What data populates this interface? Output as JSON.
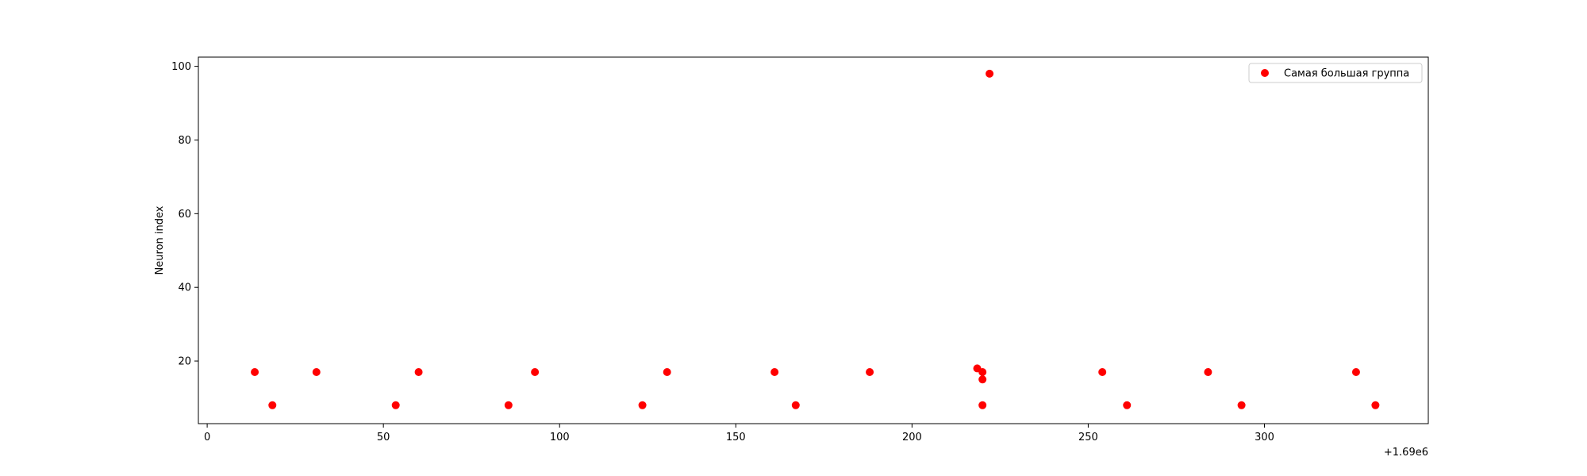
{
  "chart_data": {
    "type": "scatter",
    "title": "",
    "xlabel": "",
    "ylabel": "Neuron index",
    "x_offset_label": "+1.69e6",
    "x_offset": 1690000,
    "xlim": [
      1689997.5,
      1690346.5
    ],
    "ylim": [
      3,
      102.5
    ],
    "x_ticks": [
      0,
      50,
      100,
      150,
      200,
      250,
      300
    ],
    "x_tick_labels": [
      "0",
      "50",
      "100",
      "150",
      "200",
      "250",
      "300"
    ],
    "y_ticks": [
      20,
      40,
      60,
      80,
      100
    ],
    "y_tick_labels": [
      "20",
      "40",
      "60",
      "80",
      "100"
    ],
    "grid": false,
    "legend_position": "top-right",
    "series": [
      {
        "name": "Самая большая группа",
        "color": "#ff0000",
        "marker": "circle",
        "points": [
          {
            "x": 1690013.5,
            "y": 17
          },
          {
            "x": 1690018.5,
            "y": 8
          },
          {
            "x": 1690031,
            "y": 17
          },
          {
            "x": 1690053.5,
            "y": 8
          },
          {
            "x": 1690060,
            "y": 17
          },
          {
            "x": 1690085.5,
            "y": 8
          },
          {
            "x": 1690093,
            "y": 17
          },
          {
            "x": 1690123.5,
            "y": 8
          },
          {
            "x": 1690130.5,
            "y": 17
          },
          {
            "x": 1690161,
            "y": 17
          },
          {
            "x": 1690167,
            "y": 8
          },
          {
            "x": 1690188,
            "y": 17
          },
          {
            "x": 1690218.5,
            "y": 18
          },
          {
            "x": 1690220,
            "y": 17
          },
          {
            "x": 1690220,
            "y": 15
          },
          {
            "x": 1690220,
            "y": 8
          },
          {
            "x": 1690222,
            "y": 98
          },
          {
            "x": 1690254,
            "y": 17
          },
          {
            "x": 1690261,
            "y": 8
          },
          {
            "x": 1690284,
            "y": 17
          },
          {
            "x": 1690293.5,
            "y": 8
          },
          {
            "x": 1690326,
            "y": 17
          },
          {
            "x": 1690331.5,
            "y": 8
          }
        ]
      }
    ]
  }
}
